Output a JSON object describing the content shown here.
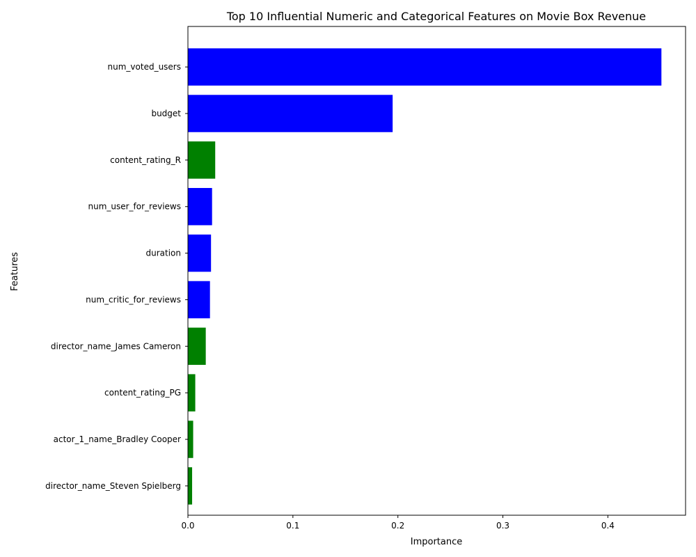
{
  "chart_data": {
    "type": "bar",
    "orientation": "horizontal",
    "title": "Top 10 Influential Numeric and Categorical Features on Movie Box Revenue",
    "xlabel": "Importance",
    "ylabel": "Features",
    "categories": [
      "num_voted_users",
      "budget",
      "content_rating_R",
      "num_user_for_reviews",
      "duration",
      "num_critic_for_reviews",
      "director_name_James Cameron",
      "content_rating_PG",
      "actor_1_name_Bradley Cooper",
      "director_name_Steven Spielberg"
    ],
    "values": [
      0.451,
      0.195,
      0.026,
      0.023,
      0.022,
      0.021,
      0.017,
      0.007,
      0.005,
      0.004
    ],
    "feature_kind": [
      "numeric",
      "numeric",
      "categorical",
      "numeric",
      "numeric",
      "numeric",
      "categorical",
      "categorical",
      "categorical",
      "categorical"
    ],
    "colors": {
      "numeric": "#0000ff",
      "categorical": "#008000"
    },
    "xlim": [
      0,
      0.474
    ],
    "xticks": [
      0.0,
      0.1,
      0.2,
      0.3,
      0.4
    ],
    "xtick_labels": [
      "0.0",
      "0.1",
      "0.2",
      "0.3",
      "0.4"
    ],
    "grid": false,
    "legend": "none"
  }
}
